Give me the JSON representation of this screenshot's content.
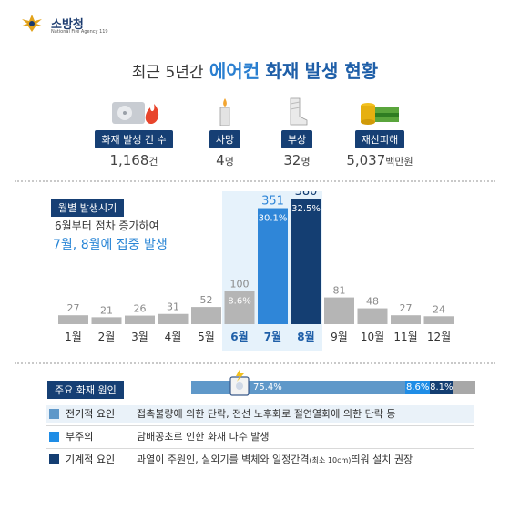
{
  "header": {
    "org_name": "소방청",
    "org_sub": "National Fire Agency 119"
  },
  "title": {
    "pre": "최근 5년간",
    "mid": "에어컨",
    "main": "화재",
    "post": "발생 현황"
  },
  "stats": [
    {
      "label": "화재 발생 건 수",
      "value": "1,168",
      "unit": "건",
      "icon": "air-conditioner-fire-icon"
    },
    {
      "label": "사망",
      "value": "4",
      "unit": "명",
      "icon": "candle-icon"
    },
    {
      "label": "부상",
      "value": "32",
      "unit": "명",
      "icon": "bandage-leg-icon"
    },
    {
      "label": "재산피해",
      "value": "5,037",
      "unit": "백만원",
      "icon": "money-coins-icon"
    }
  ],
  "chart_label": "월별 발생시기",
  "chart_note_1": "6월부터 점차 증가하여",
  "chart_note_2": "7월, 8월에 집중 발생",
  "chart_data": {
    "type": "bar",
    "title": "월별 발생시기",
    "categories": [
      "1월",
      "2월",
      "3월",
      "4월",
      "5월",
      "6월",
      "7월",
      "8월",
      "9월",
      "10월",
      "11월",
      "12월"
    ],
    "values": [
      27,
      21,
      26,
      31,
      52,
      100,
      351,
      380,
      81,
      48,
      27,
      24
    ],
    "percent_labels": [
      "",
      "",
      "",
      "",
      "",
      "8.6%",
      "30.1%",
      "32.5%",
      "",
      "",
      "",
      ""
    ],
    "highlight": [
      "6월",
      "7월",
      "8월"
    ],
    "ylim": [
      0,
      380
    ],
    "grid": false,
    "colors": {
      "default": "#b5b5b5",
      "6월": "#b5b5b5",
      "7월": "#2f86d8",
      "8월": "#143e72",
      "highlight_bg": "#e6f2fb"
    }
  },
  "causes": {
    "title": "주요 화재 원인",
    "chart_data": {
      "type": "bar",
      "orientation": "horizontal-stacked",
      "series": [
        {
          "name": "전기적 요인",
          "value": 75.4,
          "label": "75.4%",
          "color": "#5f98c9"
        },
        {
          "name": "부주의",
          "value": 8.6,
          "label": "8.6%",
          "color": "#1f8de6"
        },
        {
          "name": "기계적 요인",
          "value": 8.1,
          "label": "8.1%",
          "color": "#143e72"
        }
      ],
      "total": 100,
      "remainder_color": "#a8a8a8"
    },
    "items": [
      {
        "name": "전기적 요인",
        "desc": "접촉불량에 의한 단락, 전선 노후화로 절연열화에 의한 단락 등",
        "desc_small": "",
        "desc_tail": "",
        "bg": "#eaf2f9",
        "color": "#5f98c9"
      },
      {
        "name": "부주의",
        "desc": "담배꽁초로 인한 화재 다수 발생",
        "desc_small": "",
        "desc_tail": "",
        "bg": "#ffffff",
        "color": "#1f8de6"
      },
      {
        "name": "기계적 요인",
        "desc": "과열이 주원인, 실외기를 벽체와 일정간격",
        "desc_small": "(최소 10cm)",
        "desc_tail": "띄워 설치 권장",
        "bg": "#ffffff",
        "color": "#143e72"
      }
    ]
  }
}
